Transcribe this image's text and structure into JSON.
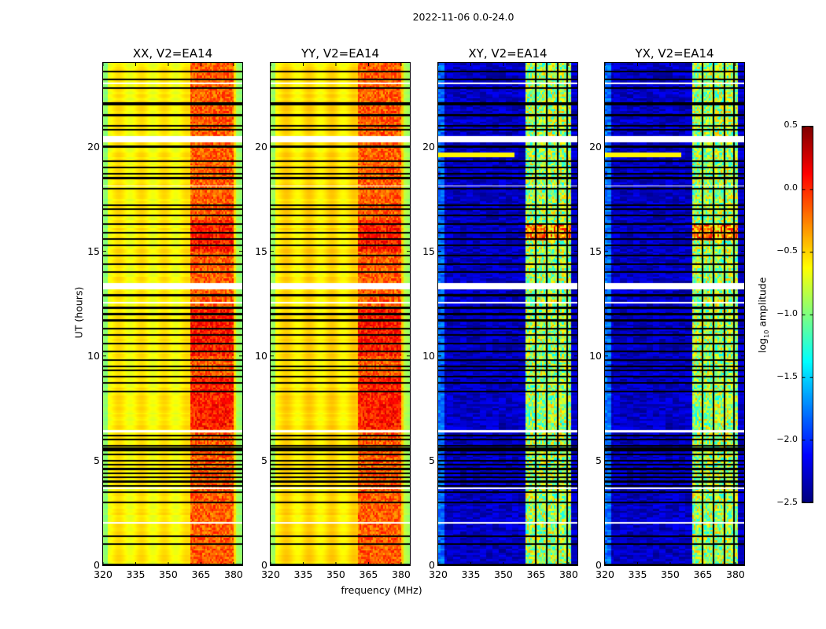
{
  "suptitle": "2022-11-06 0.0-24.0",
  "chart_data": {
    "type": "heatmap",
    "title": "2022-11-06 0.0-24.0",
    "xlabel": "frequency (MHz)",
    "ylabel": "UT (hours)",
    "xlim": [
      320,
      384
    ],
    "ylim": [
      0,
      24
    ],
    "xticks": [
      "320",
      "335",
      "350",
      "365",
      "380"
    ],
    "xtick_values": [
      320,
      335,
      350,
      365,
      380
    ],
    "yticks": [
      "0",
      "5",
      "10",
      "15",
      "20"
    ],
    "ytick_values": [
      0,
      5,
      10,
      15,
      20
    ],
    "panels": [
      {
        "title": "XX, V2=EA14",
        "pol": "XX",
        "continuum_level": -0.6,
        "band_level": -0.15,
        "band_range_mhz": [
          360,
          380
        ]
      },
      {
        "title": "YY, V2=EA14",
        "pol": "YY",
        "continuum_level": -0.55,
        "band_level": -0.15,
        "band_range_mhz": [
          360,
          380
        ]
      },
      {
        "title": "XY, V2=EA14",
        "pol": "XY",
        "continuum_level": -2.3,
        "band_level": -0.9,
        "band_range_mhz": [
          360,
          381
        ]
      },
      {
        "title": "YX, V2=EA14",
        "pol": "YX",
        "continuum_level": -2.3,
        "band_level": -0.9,
        "band_range_mhz": [
          360,
          381
        ]
      }
    ],
    "flagged_ut_black": [
      0.05,
      1.0,
      1.4,
      3.0,
      3.5,
      3.8,
      4.0,
      4.2,
      4.4,
      4.6,
      4.8,
      5.0,
      5.3,
      5.5,
      5.6,
      5.7,
      6.0,
      6.2,
      8.3,
      8.7,
      9.0,
      9.3,
      9.5,
      9.8,
      10.2,
      10.6,
      11.0,
      11.3,
      11.7,
      12.0,
      12.3,
      12.9,
      14.0,
      14.4,
      14.8,
      15.3,
      15.6,
      15.9,
      16.3,
      16.7,
      17.0,
      17.2,
      18.0,
      18.5,
      18.7,
      19.0,
      19.3,
      20.0,
      20.8,
      21.0,
      21.5,
      22.0,
      22.1,
      22.8,
      23.2,
      23.6
    ],
    "flagged_ut_white": [
      [
        2.0,
        2.05
      ],
      [
        3.65,
        3.7
      ],
      [
        6.35,
        6.45
      ],
      [
        12.5,
        12.6
      ],
      [
        13.2,
        13.5
      ],
      [
        18.1,
        18.15
      ],
      [
        20.2,
        20.5
      ],
      [
        23.0,
        23.05
      ]
    ],
    "colorbar": {
      "label": "log10 amplitude",
      "label_main": "log",
      "label_sub": "10",
      "label_rest": " amplitude",
      "colormap": "jet",
      "range": [
        -2.5,
        0.5
      ],
      "ticks": [
        "0.5",
        "0.0",
        "−0.5",
        "−1.0",
        "−1.5",
        "−2.0",
        "−2.5"
      ],
      "tick_values": [
        0.5,
        0.0,
        -0.5,
        -1.0,
        -1.5,
        -2.0,
        -2.5
      ]
    }
  }
}
